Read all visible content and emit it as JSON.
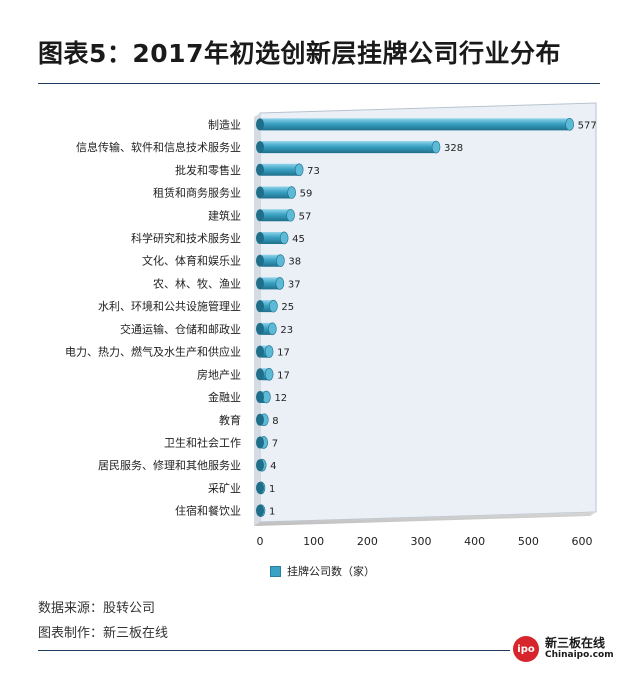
{
  "title": "图表5：2017年初选创新层挂牌公司行业分布",
  "chart_data": {
    "type": "bar",
    "orientation": "horizontal",
    "categories": [
      "制造业",
      "信息传输、软件和信息技术服务业",
      "批发和零售业",
      "租赁和商务服务业",
      "建筑业",
      "科学研究和技术服务业",
      "文化、体育和娱乐业",
      "农、林、牧、渔业",
      "水利、环境和公共设施管理业",
      "交通运输、仓储和邮政业",
      "电力、热力、燃气及水生产和供应业",
      "房地产业",
      "金融业",
      "教育",
      "卫生和社会工作",
      "居民服务、修理和其他服务业",
      "采矿业",
      "住宿和餐饮业"
    ],
    "series": [
      {
        "name": "挂牌公司数（家）",
        "values": [
          577,
          328,
          73,
          59,
          57,
          45,
          38,
          37,
          25,
          23,
          17,
          17,
          12,
          8,
          7,
          4,
          1,
          1
        ]
      }
    ],
    "xlim": [
      0,
      600
    ],
    "xticks": [
      0,
      100,
      200,
      300,
      400,
      500,
      600
    ],
    "grid": false,
    "legend": "bottom",
    "colors": {
      "bar": "#3aa2c4",
      "bar_dark": "#1f6f8b",
      "plot_bg": "#eaf0f6"
    }
  },
  "source_note": "数据来源：股转公司",
  "maker_note": "图表制作：新三板在线",
  "logo": {
    "mark": "ipo",
    "name": "新三板在线",
    "url_text": "Chinaipo.com"
  }
}
